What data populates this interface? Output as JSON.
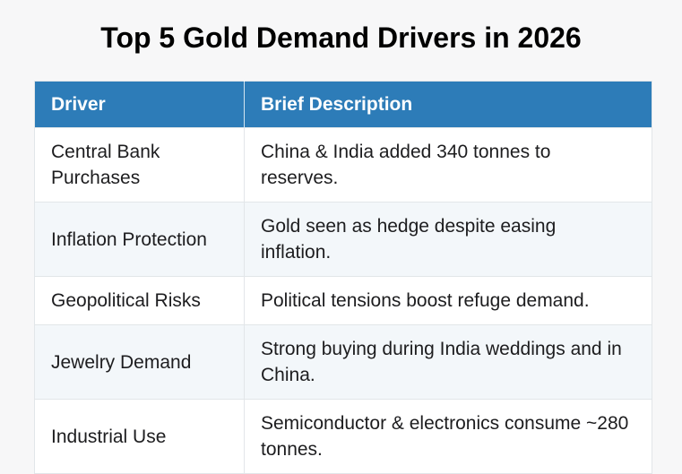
{
  "page": {
    "title": "Top 5 Gold Demand Drivers in 2026"
  },
  "table": {
    "columns": [
      {
        "label": "Driver"
      },
      {
        "label": "Brief Description"
      }
    ],
    "rows": [
      {
        "driver": "Central Bank Purchases",
        "description": "China & India added 340 tonnes to reserves."
      },
      {
        "driver": "Inflation Protection",
        "description": "Gold seen as hedge despite easing inflation."
      },
      {
        "driver": "Geopolitical Risks",
        "description": "Political tensions boost refuge demand."
      },
      {
        "driver": "Jewelry Demand",
        "description": "Strong buying during India weddings and in China."
      },
      {
        "driver": "Industrial Use",
        "description": "Semiconductor & electronics consume ~280 tonnes."
      }
    ]
  },
  "colors": {
    "header_bg": "#2d7cb8",
    "header_text": "#ffffff",
    "row_stripe": "#f3f7fa",
    "table_border": "#e2e6e9",
    "page_bg": "#f7f7f8",
    "body_text": "#1d1d1f",
    "title_text": "#000000"
  }
}
